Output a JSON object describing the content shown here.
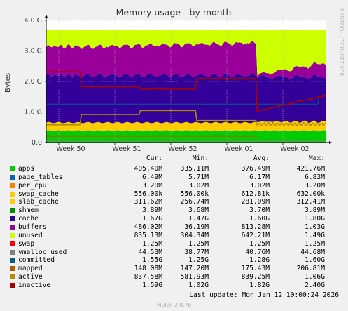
{
  "chart_data": {
    "type": "area",
    "title": "Memory usage - by month",
    "ylabel": "Bytes",
    "side_label": "RRDTOOL / TOBI OETIKER",
    "y_ticks": [
      "0.0",
      "1.0 G",
      "2.0 G",
      "3.0 G",
      "4.0 G"
    ],
    "ylim": [
      0,
      4
    ],
    "x_ticks": [
      "Week 50",
      "Week 51",
      "Week 52",
      "Week 01",
      "Week 02"
    ],
    "grid": true,
    "legend_header": {
      "cur": "Cur:",
      "min": "Min:",
      "avg": "Avg:",
      "max": "Max:"
    },
    "series": [
      {
        "name": "apps",
        "color": "#00cc00",
        "cur": "405.40M",
        "min": "335.11M",
        "avg": "376.49M",
        "max": "421.76M"
      },
      {
        "name": "page_tables",
        "color": "#0066b3",
        "cur": "6.49M",
        "min": "5.71M",
        "avg": "6.17M",
        "max": "6.83M"
      },
      {
        "name": "per_cpu",
        "color": "#ff8000",
        "cur": "3.20M",
        "min": "3.02M",
        "avg": "3.02M",
        "max": "3.20M"
      },
      {
        "name": "swap_cache",
        "color": "#ffcc00",
        "cur": "556.00k",
        "min": "556.00k",
        "avg": "612.81k",
        "max": "632.00k"
      },
      {
        "name": "slab_cache",
        "color": "#ffcc00",
        "cur": "311.62M",
        "min": "256.74M",
        "avg": "281.09M",
        "max": "312.41M"
      },
      {
        "name": "shmem",
        "color": "#008f00",
        "cur": "3.89M",
        "min": "3.68M",
        "avg": "3.70M",
        "max": "3.89M"
      },
      {
        "name": "cache",
        "color": "#330099",
        "cur": "1.67G",
        "min": "1.47G",
        "avg": "1.60G",
        "max": "1.80G"
      },
      {
        "name": "buffers",
        "color": "#990099",
        "cur": "486.02M",
        "min": "36.19M",
        "avg": "813.28M",
        "max": "1.03G"
      },
      {
        "name": "unused",
        "color": "#ccff00",
        "cur": "835.13M",
        "min": "304.34M",
        "avg": "642.21M",
        "max": "1.49G"
      },
      {
        "name": "swap",
        "color": "#ff0000",
        "cur": "1.25M",
        "min": "1.25M",
        "avg": "1.25M",
        "max": "1.25M"
      },
      {
        "name": "vmalloc_used",
        "color": "#808080",
        "cur": "44.53M",
        "min": "38.77M",
        "avg": "40.76M",
        "max": "44.68M"
      },
      {
        "name": "committed",
        "color": "#005e8f",
        "cur": "1.55G",
        "min": "1.25G",
        "avg": "1.28G",
        "max": "1.60G"
      },
      {
        "name": "mapped",
        "color": "#b35900",
        "cur": "148.08M",
        "min": "147.20M",
        "avg": "175.43M",
        "max": "206.81M"
      },
      {
        "name": "active",
        "color": "#b38f00",
        "cur": "837.58M",
        "min": "581.93M",
        "avg": "839.25M",
        "max": "1.06G"
      },
      {
        "name": "inactive",
        "color": "#aa0000",
        "cur": "1.59G",
        "min": "1.02G",
        "avg": "1.82G",
        "max": "2.40G"
      }
    ]
  },
  "last_update": "Last update:  Mon Jan 12 10:00:24 2026",
  "footer": "Munin 2.0.76"
}
